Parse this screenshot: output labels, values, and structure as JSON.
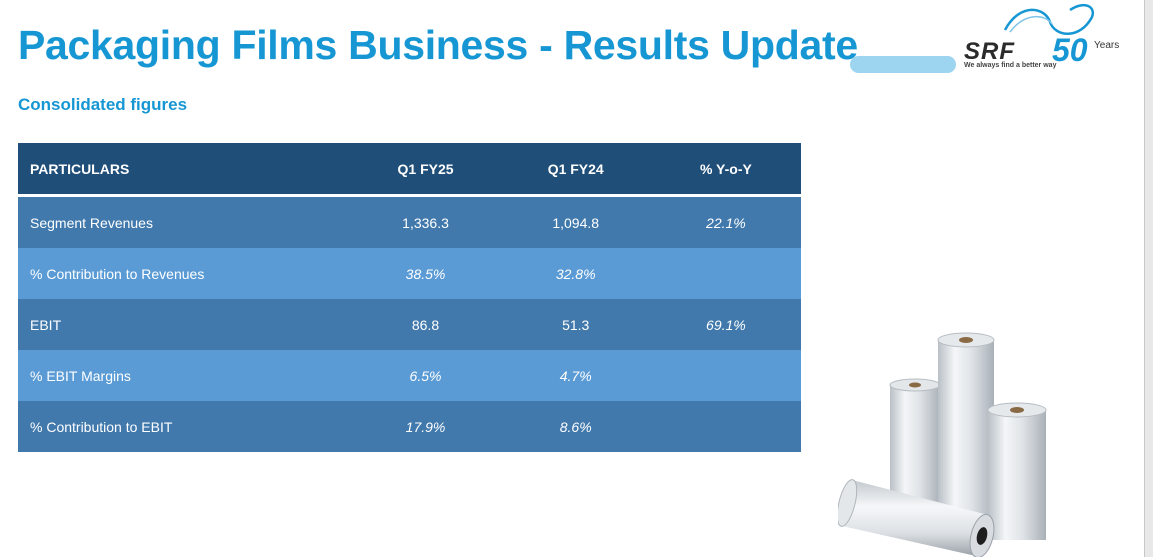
{
  "header": {
    "title": "Packaging Films Business - Results Update",
    "subtitle": "Consolidated figures"
  },
  "logo": {
    "text": "SRF",
    "number": "50",
    "years": "Years",
    "tagline": "We always find a better way"
  },
  "table": {
    "headers": [
      "PARTICULARS",
      "Q1 FY25",
      "Q1 FY24",
      "% Y-o-Y"
    ],
    "rows": [
      {
        "label": "Segment Revenues",
        "q1fy25": "1,336.3",
        "q1fy24": "1,094.8",
        "yoy": "22.1%"
      },
      {
        "label": "% Contribution to Revenues",
        "q1fy25": "38.5%",
        "q1fy24": "32.8%",
        "yoy": ""
      },
      {
        "label": "EBIT",
        "q1fy25": "86.8",
        "q1fy24": "51.3",
        "yoy": "69.1%"
      },
      {
        "label": "% EBIT Margins",
        "q1fy25": "6.5%",
        "q1fy24": "4.7%",
        "yoy": ""
      },
      {
        "label": "% Contribution to EBIT",
        "q1fy25": "17.9%",
        "q1fy24": "8.6%",
        "yoy": ""
      }
    ]
  },
  "colors": {
    "title": "#1697d4",
    "header_row": "#1f4e79",
    "row_dark": "#4179ad",
    "row_light": "#5a9bd5"
  }
}
